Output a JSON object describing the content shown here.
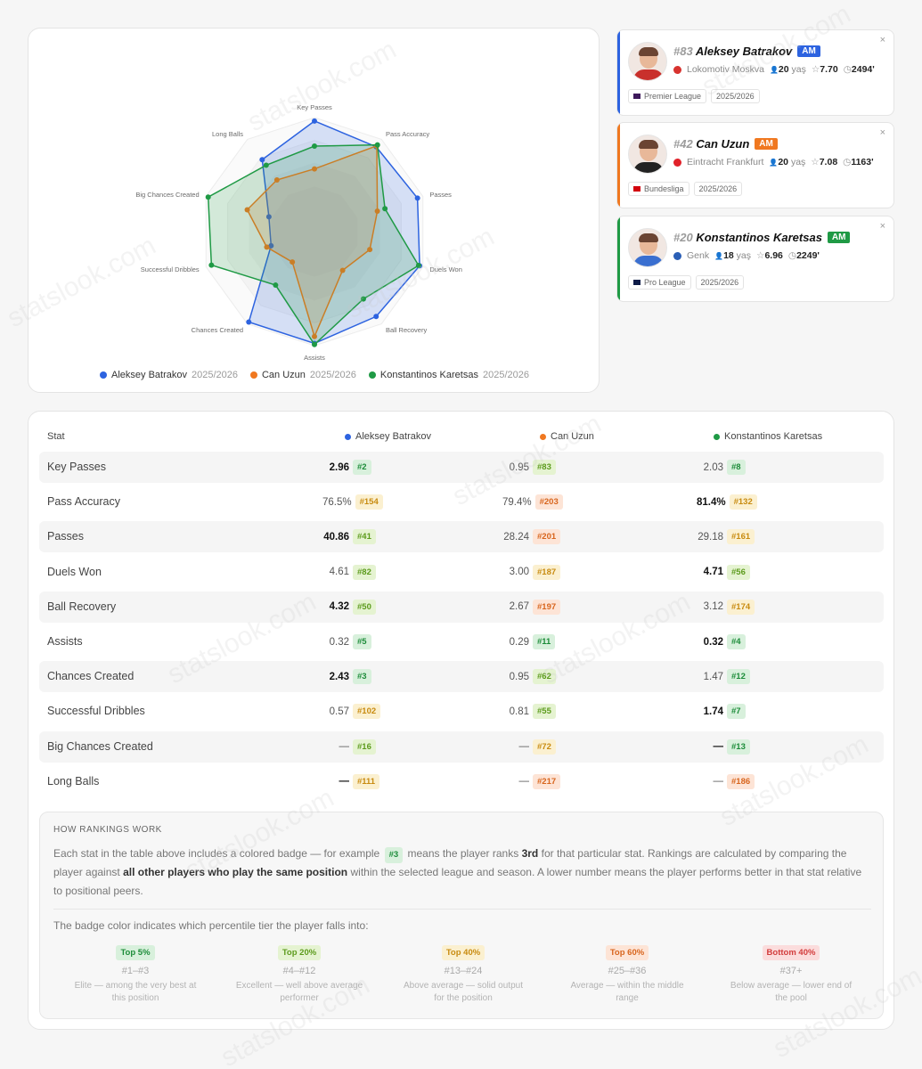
{
  "radar": {
    "axes": [
      "Key Passes",
      "Pass Accuracy",
      "Passes",
      "Duels Won",
      "Ball Recovery",
      "Assists",
      "Chances Created",
      "Successful Dribbles",
      "Big Chances Created",
      "Long Balls"
    ],
    "series": [
      {
        "name": "Aleksey Batrakov",
        "season": "2025/2026",
        "color": "#2d63e0",
        "values": [
          0.97,
          0.92,
          0.95,
          0.97,
          0.92,
          0.98,
          0.98,
          0.4,
          0.42,
          0.78
        ]
      },
      {
        "name": "Can Uzun",
        "season": "2025/2026",
        "color": "#f07820",
        "values": [
          0.55,
          0.93,
          0.58,
          0.51,
          0.42,
          0.92,
          0.33,
          0.44,
          0.62,
          0.56
        ]
      },
      {
        "name": "Konstantinos Karetsas",
        "season": "2025/2026",
        "color": "#1f9a45",
        "values": [
          0.75,
          0.94,
          0.65,
          0.96,
          0.73,
          0.99,
          0.58,
          0.95,
          0.98,
          0.72
        ]
      }
    ]
  },
  "players": [
    {
      "number": "#83",
      "name": "Aleksey Batrakov",
      "position": "AM",
      "color": "#2d63e0",
      "club": "Lokomotiv Moskva",
      "club_color": "#d8332f",
      "age": "20",
      "age_unit": "yaş",
      "rating": "7.70",
      "minutes": "2494'",
      "league": "Premier League",
      "season": "2025/2026",
      "shirt": "#c9302c"
    },
    {
      "number": "#42",
      "name": "Can Uzun",
      "position": "AM",
      "color": "#f07820",
      "club": "Eintracht Frankfurt",
      "club_color": "#e1222a",
      "age": "20",
      "age_unit": "yaş",
      "rating": "7.08",
      "minutes": "1163'",
      "league": "Bundesliga",
      "season": "2025/2026",
      "shirt": "#222222"
    },
    {
      "number": "#20",
      "name": "Konstantinos Karetsas",
      "position": "AM",
      "color": "#1f9a45",
      "club": "Genk",
      "club_color": "#2b5fb6",
      "age": "18",
      "age_unit": "yaş",
      "rating": "6.96",
      "minutes": "2249'",
      "league": "Pro League",
      "season": "2025/2026",
      "shirt": "#3a6fd0"
    }
  ],
  "table": {
    "stat_header": "Stat",
    "columns": [
      {
        "name": "Aleksey Batrakov",
        "color": "#2d63e0"
      },
      {
        "name": "Can Uzun",
        "color": "#f07820"
      },
      {
        "name": "Konstantinos Karetsas",
        "color": "#1f9a45"
      }
    ],
    "rows": [
      {
        "stat": "Key Passes",
        "cells": [
          {
            "v": "2.96",
            "r": "#2",
            "t": "elite",
            "best": true
          },
          {
            "v": "0.95",
            "r": "#83",
            "t": "exc"
          },
          {
            "v": "2.03",
            "r": "#8",
            "t": "elite"
          }
        ]
      },
      {
        "stat": "Pass Accuracy",
        "cells": [
          {
            "v": "76.5%",
            "r": "#154",
            "t": "abv"
          },
          {
            "v": "79.4%",
            "r": "#203",
            "t": "avg"
          },
          {
            "v": "81.4%",
            "r": "#132",
            "t": "abv",
            "best": true
          }
        ]
      },
      {
        "stat": "Passes",
        "cells": [
          {
            "v": "40.86",
            "r": "#41",
            "t": "exc",
            "best": true
          },
          {
            "v": "28.24",
            "r": "#201",
            "t": "avg"
          },
          {
            "v": "29.18",
            "r": "#161",
            "t": "abv"
          }
        ]
      },
      {
        "stat": "Duels Won",
        "cells": [
          {
            "v": "4.61",
            "r": "#82",
            "t": "exc"
          },
          {
            "v": "3.00",
            "r": "#187",
            "t": "abv"
          },
          {
            "v": "4.71",
            "r": "#56",
            "t": "exc",
            "best": true
          }
        ]
      },
      {
        "stat": "Ball Recovery",
        "cells": [
          {
            "v": "4.32",
            "r": "#50",
            "t": "exc",
            "best": true
          },
          {
            "v": "2.67",
            "r": "#197",
            "t": "avg"
          },
          {
            "v": "3.12",
            "r": "#174",
            "t": "abv"
          }
        ]
      },
      {
        "stat": "Assists",
        "cells": [
          {
            "v": "0.32",
            "r": "#5",
            "t": "elite"
          },
          {
            "v": "0.29",
            "r": "#11",
            "t": "elite"
          },
          {
            "v": "0.32",
            "r": "#4",
            "t": "elite",
            "best": true
          }
        ]
      },
      {
        "stat": "Chances Created",
        "cells": [
          {
            "v": "2.43",
            "r": "#3",
            "t": "elite",
            "best": true
          },
          {
            "v": "0.95",
            "r": "#62",
            "t": "exc"
          },
          {
            "v": "1.47",
            "r": "#12",
            "t": "elite"
          }
        ]
      },
      {
        "stat": "Successful Dribbles",
        "cells": [
          {
            "v": "0.57",
            "r": "#102",
            "t": "abv"
          },
          {
            "v": "0.81",
            "r": "#55",
            "t": "exc"
          },
          {
            "v": "1.74",
            "r": "#7",
            "t": "elite",
            "best": true
          }
        ]
      },
      {
        "stat": "Big Chances Created",
        "cells": [
          {
            "v": "—",
            "r": "#16",
            "t": "exc"
          },
          {
            "v": "—",
            "r": "#72",
            "t": "abv"
          },
          {
            "v": "—",
            "r": "#13",
            "t": "elite",
            "best": true
          }
        ]
      },
      {
        "stat": "Long Balls",
        "cells": [
          {
            "v": "—",
            "r": "#111",
            "t": "abv",
            "best": true
          },
          {
            "v": "—",
            "r": "#217",
            "t": "avg"
          },
          {
            "v": "—",
            "r": "#186",
            "t": "avg"
          }
        ]
      }
    ]
  },
  "how": {
    "title": "HOW RANKINGS WORK",
    "p1": "Each stat in the table above includes a colored badge — for example",
    "example_badge": "#3",
    "p2": "means the player ranks",
    "p2_bold": "3rd",
    "p3": "for that particular stat. Rankings are calculated by comparing the player against",
    "p3_bold": "all other players who play the same position",
    "p4": "within the selected league and season. A lower number means the player performs better in that stat relative to positional peers.",
    "sub": "The badge color indicates which percentile tier the player falls into:",
    "tiers": [
      {
        "label": "Top 5%",
        "range": "#1–#3",
        "desc": "Elite — among the very best at this position",
        "t": "elite"
      },
      {
        "label": "Top 20%",
        "range": "#4–#12",
        "desc": "Excellent — well above average performer",
        "t": "exc"
      },
      {
        "label": "Top 40%",
        "range": "#13–#24",
        "desc": "Above average — solid output for the position",
        "t": "abv"
      },
      {
        "label": "Top 60%",
        "range": "#25–#36",
        "desc": "Average — within the middle range",
        "t": "avg"
      },
      {
        "label": "Bottom 40%",
        "range": "#37+",
        "desc": "Below average — lower end of the pool",
        "t": "below"
      }
    ]
  },
  "watermark": "statslook.com"
}
